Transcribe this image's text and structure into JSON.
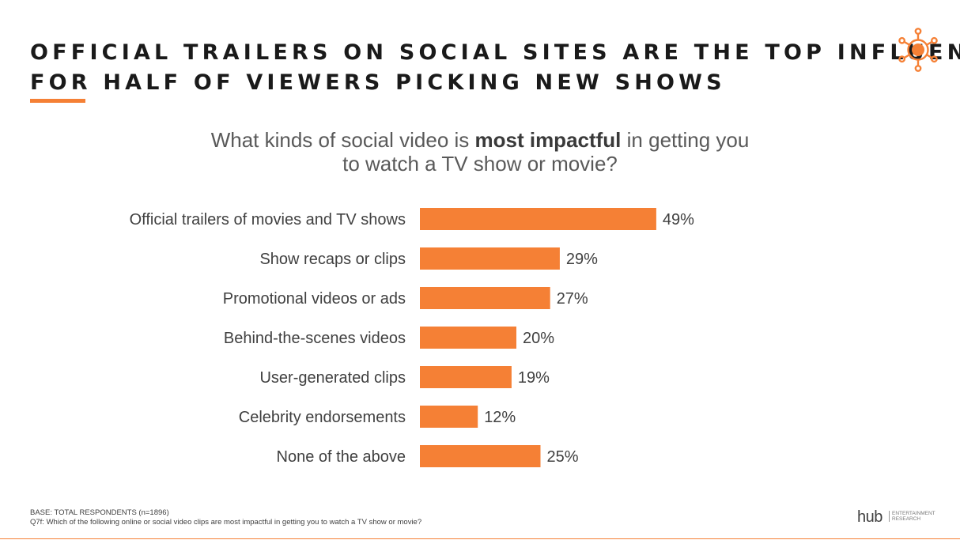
{
  "header": {
    "title_line1": "OFFICIAL TRAILERS ON SOCIAL SITES ARE THE TOP INFLUENCE",
    "title_line2": "FOR HALF OF VIEWERS PICKING NEW SHOWS",
    "brand_icon": "sun-burst-icon"
  },
  "question": {
    "before": "What kinds of social video is ",
    "emphasis": "most impactful",
    "after": " in getting you",
    "line2": "to watch a TV show or movie?"
  },
  "chart_data": {
    "type": "bar",
    "orientation": "horizontal",
    "title": "What kinds of social video is most impactful in getting you to watch a TV show or movie?",
    "categories": [
      "Official trailers of movies and TV shows",
      "Show recaps or clips",
      "Promotional videos or ads",
      "Behind-the-scenes videos",
      "User-generated clips",
      "Celebrity endorsements",
      "None of the above"
    ],
    "values": [
      49,
      29,
      27,
      20,
      19,
      12,
      25
    ],
    "value_labels": [
      "49%",
      "29%",
      "27%",
      "20%",
      "19%",
      "12%",
      "25%"
    ],
    "xlim": [
      0,
      100
    ],
    "grid": false,
    "bar_color": "#F58035"
  },
  "footer": {
    "base": "BASE: TOTAL RESPONDENTS (n=1896)",
    "question_note": "Q7f: Which of the following online or social video clips are most impactful in getting you to watch a TV show or movie?",
    "logo_text": "hub",
    "logo_line1": "ENTERTAINMENT",
    "logo_line2": "RESEARCH"
  },
  "colors": {
    "accent": "#F58035",
    "text": "#404040",
    "title": "#1a1a1a"
  }
}
